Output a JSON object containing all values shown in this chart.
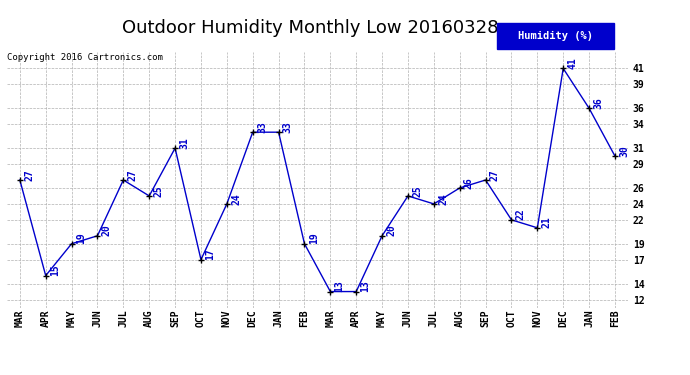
{
  "title": "Outdoor Humidity Monthly Low 20160328",
  "copyright": "Copyright 2016 Cartronics.com",
  "legend_label": "Humidity (%)",
  "categories": [
    "MAR",
    "APR",
    "MAY",
    "JUN",
    "JUL",
    "AUG",
    "SEP",
    "OCT",
    "NOV",
    "DEC",
    "JAN",
    "FEB",
    "MAR",
    "APR",
    "MAY",
    "JUN",
    "JUL",
    "AUG",
    "SEP",
    "OCT",
    "NOV",
    "DEC",
    "JAN",
    "FEB"
  ],
  "values": [
    27,
    15,
    19,
    20,
    27,
    25,
    31,
    17,
    24,
    33,
    33,
    19,
    13,
    13,
    20,
    25,
    24,
    26,
    27,
    22,
    21,
    41,
    36,
    30
  ],
  "line_color": "#0000cc",
  "marker_color": "#000000",
  "label_color": "#0000cc",
  "bg_color": "#ffffff",
  "grid_color": "#b0b0b0",
  "ylim_min": 11,
  "ylim_max": 43,
  "yticks": [
    12,
    14,
    17,
    19,
    22,
    24,
    26,
    29,
    31,
    34,
    36,
    39,
    41
  ],
  "title_fontsize": 13,
  "tick_fontsize": 7,
  "label_fontsize": 7,
  "legend_bg": "#0000cc",
  "legend_text_color": "#ffffff"
}
